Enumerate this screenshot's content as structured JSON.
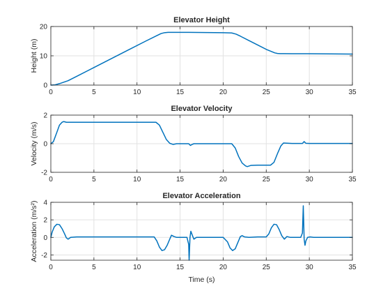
{
  "chart_data": [
    {
      "type": "line",
      "title": "Elevator Height",
      "xlabel": "",
      "ylabel": "Height (m)",
      "xlim": [
        0,
        35
      ],
      "ylim": [
        0,
        20
      ],
      "xticks": [
        0,
        5,
        10,
        15,
        20,
        25,
        30,
        35
      ],
      "yticks": [
        0,
        10,
        20
      ],
      "grid": true,
      "color": "#0072BD",
      "series": [
        {
          "x": [
            0,
            0.5,
            1,
            1.5,
            2,
            3,
            5,
            7,
            9,
            11,
            12.3,
            12.8,
            13.2,
            13.6,
            14,
            16,
            18,
            20,
            21,
            21.5,
            22,
            23,
            24,
            25,
            26,
            26.3,
            26.6,
            27,
            28,
            30,
            35
          ],
          "y": [
            0,
            0.1,
            0.5,
            1.0,
            1.5,
            3.0,
            6.0,
            9.0,
            12.0,
            15.0,
            16.9,
            17.6,
            17.9,
            18.0,
            18.0,
            18.0,
            17.95,
            17.9,
            17.8,
            17.4,
            16.7,
            15.2,
            13.7,
            12.2,
            11.0,
            10.8,
            10.75,
            10.75,
            10.7,
            10.7,
            10.6
          ]
        }
      ]
    },
    {
      "type": "line",
      "title": "Elevator Velocity",
      "xlabel": "",
      "ylabel": "Velocity (m/s)",
      "xlim": [
        0,
        35
      ],
      "ylim": [
        -2,
        2
      ],
      "xticks": [
        0,
        5,
        10,
        15,
        20,
        25,
        30,
        35
      ],
      "yticks": [
        -2,
        0,
        2
      ],
      "grid": true,
      "color": "#0072BD",
      "series": [
        {
          "x": [
            0,
            0.3,
            0.7,
            1.0,
            1.3,
            1.5,
            1.8,
            2.2,
            3,
            6,
            10,
            12.2,
            12.6,
            13.0,
            13.4,
            13.8,
            14.2,
            14.6,
            15,
            15.8,
            16.0,
            16.2,
            16.4,
            16.6,
            17,
            18,
            20,
            21,
            21.4,
            21.8,
            22.2,
            22.6,
            22.8,
            23.2,
            24,
            25,
            25.5,
            25.9,
            26.3,
            26.7,
            27,
            28,
            29.2,
            29.4,
            29.6,
            30,
            32,
            35
          ],
          "y": [
            0,
            0.15,
            0.8,
            1.3,
            1.5,
            1.55,
            1.5,
            1.5,
            1.5,
            1.5,
            1.5,
            1.5,
            1.3,
            0.8,
            0.3,
            0.03,
            -0.05,
            0.0,
            0.0,
            0.0,
            0.0,
            -0.12,
            -0.05,
            0.0,
            0.0,
            0.0,
            0.0,
            0.0,
            -0.3,
            -0.9,
            -1.35,
            -1.55,
            -1.6,
            -1.52,
            -1.5,
            -1.5,
            -1.5,
            -1.3,
            -0.7,
            -0.15,
            0.05,
            0.02,
            0.02,
            0.15,
            0.03,
            0.02,
            0.02,
            0.02
          ]
        }
      ]
    },
    {
      "type": "line",
      "title": "Elevator Acceleration",
      "xlabel": "Time (s)",
      "ylabel": "Acceleration (m/s²)",
      "xlim": [
        0,
        35
      ],
      "ylim": [
        -2.6,
        4
      ],
      "xticks": [
        0,
        5,
        10,
        15,
        20,
        25,
        30,
        35
      ],
      "yticks": [
        -2,
        0,
        2,
        4
      ],
      "grid": true,
      "color": "#0072BD",
      "series": [
        {
          "x": [
            0,
            0.15,
            0.4,
            0.7,
            1.0,
            1.3,
            1.6,
            1.8,
            2.0,
            2.3,
            3,
            6,
            9,
            12,
            12.3,
            12.6,
            12.9,
            13.2,
            13.5,
            13.8,
            14.0,
            14.3,
            14.6,
            15,
            15.8,
            16.0,
            16.05,
            16.15,
            16.25,
            16.4,
            16.6,
            16.9,
            17.2,
            18,
            20,
            20.5,
            20.8,
            21.1,
            21.4,
            21.7,
            22.0,
            22.2,
            22.5,
            23,
            24,
            25,
            25.3,
            25.6,
            25.9,
            26.2,
            26.5,
            26.8,
            27.1,
            27.4,
            27.8,
            29.0,
            29.2,
            29.3,
            29.4,
            29.5,
            29.6,
            29.8,
            30.1,
            30.5,
            32,
            35
          ],
          "y": [
            0,
            0.6,
            1.2,
            1.5,
            1.45,
            1.0,
            0.4,
            -0.05,
            -0.2,
            0.0,
            0.05,
            0.05,
            0.05,
            0.05,
            -0.4,
            -1.1,
            -1.5,
            -1.4,
            -0.9,
            -0.2,
            0.25,
            0.1,
            0.0,
            0.0,
            0.0,
            -0.8,
            -2.6,
            0.0,
            0.7,
            0.3,
            -0.2,
            0.0,
            0.0,
            0.0,
            0.0,
            -0.5,
            -1.2,
            -1.5,
            -1.3,
            -0.6,
            0.1,
            0.2,
            0.05,
            0.0,
            0.05,
            0.05,
            0.4,
            1.1,
            1.5,
            1.45,
            0.9,
            0.2,
            -0.2,
            0.1,
            0.0,
            0.0,
            0.5,
            3.6,
            -0.2,
            -0.9,
            -0.4,
            0.0,
            0.05,
            0.0,
            0.0,
            0.0
          ]
        }
      ]
    }
  ]
}
